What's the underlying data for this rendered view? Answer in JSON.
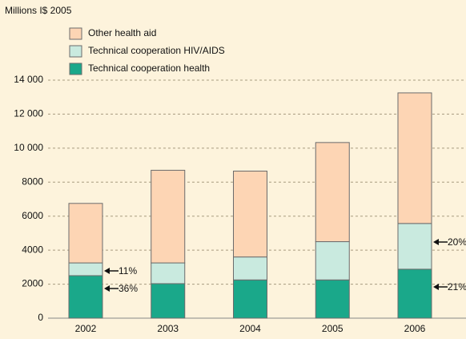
{
  "chart_data": {
    "type": "stacked_bar",
    "y_axis_label": "Millions I$ 2005",
    "categories": [
      "2002",
      "2003",
      "2004",
      "2005",
      "2006"
    ],
    "series": [
      {
        "name": "Technical cooperation health",
        "color": "#1aa88a",
        "values": [
          2500,
          2030,
          2250,
          2250,
          2880
        ]
      },
      {
        "name": "Technical cooperation HIV/AIDS",
        "color": "#c9eadf",
        "values": [
          750,
          1220,
          1350,
          2250,
          2690
        ]
      },
      {
        "name": "Other health aid",
        "color": "#fdd5b4",
        "values": [
          3500,
          5450,
          5050,
          5830,
          7680
        ]
      }
    ],
    "ylim": [
      0,
      14000
    ],
    "yticks": [
      0,
      2000,
      4000,
      6000,
      8000,
      {
        "value": 10000,
        "label": "10 000"
      },
      {
        "value": 12000,
        "label": "12 000"
      },
      {
        "value": 14000,
        "label": "14 000"
      }
    ],
    "grid": true,
    "legend": "upper left",
    "annotations": [
      "11%",
      "36%",
      "20%",
      "21%"
    ]
  }
}
